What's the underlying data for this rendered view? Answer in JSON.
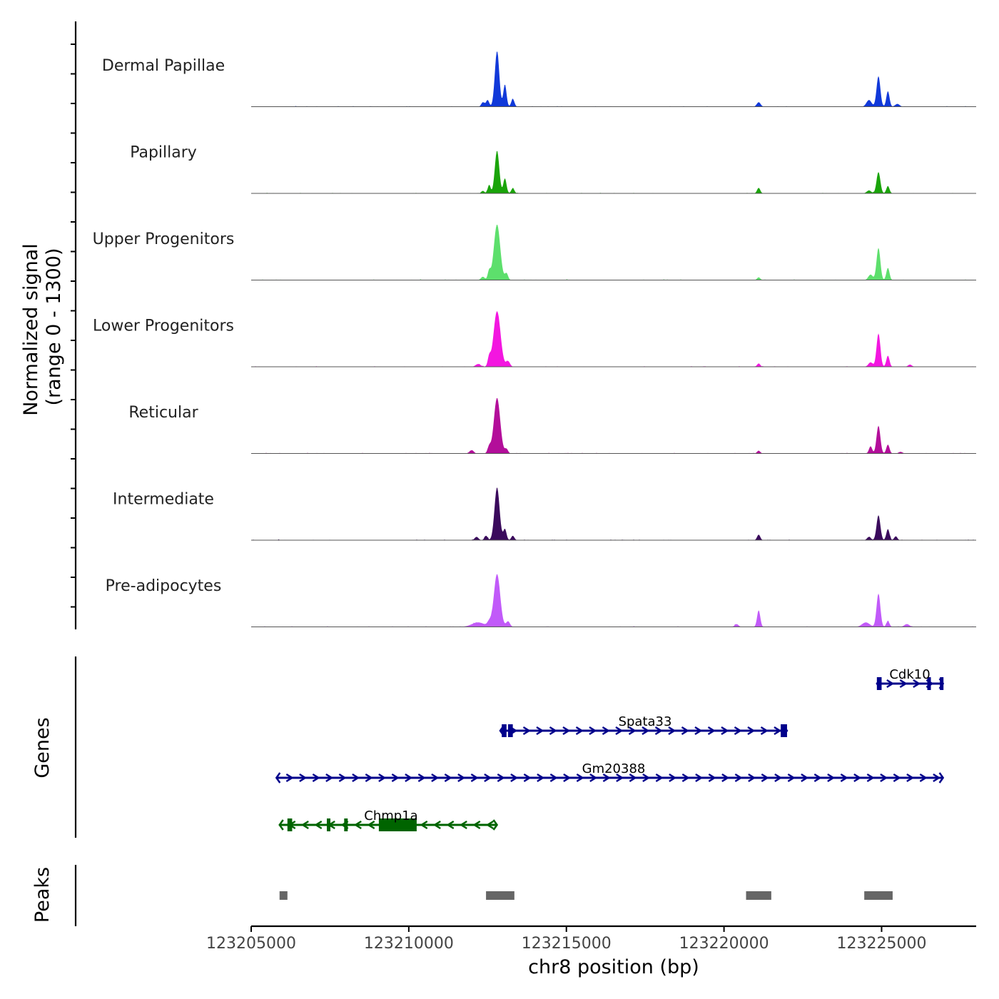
{
  "chart_data": {
    "type": "area",
    "chromosome": "chr8",
    "xlabel": "chr8 position (bp)",
    "xlim": [
      123205000,
      123228000
    ],
    "x_ticks": [
      123205000,
      123210000,
      123215000,
      123220000,
      123225000
    ],
    "x_tick_labels": [
      "123205000",
      "123210000",
      "123215000",
      "123220000",
      "123225000"
    ],
    "coverage": {
      "ylabel_line1": "Normalized signal",
      "ylabel_line2": "(range 0 - 1300)",
      "ylim": [
        0,
        1300
      ],
      "peak_sites": [
        123212800,
        123221100,
        123224900
      ],
      "tracks": [
        {
          "name": "Dermal Papillae",
          "color": "#1139D9",
          "max_signal": 1300,
          "components": [
            [
              123212800,
              1.0,
              70
            ],
            [
              123212500,
              0.12,
              50
            ],
            [
              123212350,
              0.08,
              50
            ],
            [
              123213050,
              0.4,
              50
            ],
            [
              123213300,
              0.14,
              50
            ],
            [
              123221100,
              0.08,
              60
            ],
            [
              123224900,
              0.55,
              60
            ],
            [
              123225200,
              0.28,
              50
            ],
            [
              123224600,
              0.12,
              80
            ],
            [
              123225500,
              0.05,
              70
            ]
          ]
        },
        {
          "name": "Papillary",
          "color": "#1AA40A",
          "max_signal": 1000,
          "components": [
            [
              123212800,
              1.0,
              70
            ],
            [
              123212550,
              0.2,
              45
            ],
            [
              123212350,
              0.06,
              50
            ],
            [
              123213050,
              0.35,
              50
            ],
            [
              123213300,
              0.12,
              50
            ],
            [
              123221100,
              0.13,
              50
            ],
            [
              123224900,
              0.5,
              60
            ],
            [
              123225200,
              0.17,
              50
            ],
            [
              123224600,
              0.07,
              70
            ]
          ]
        },
        {
          "name": "Upper Progenitors",
          "color": "#5DDF6C",
          "max_signal": 1300,
          "components": [
            [
              123212800,
              1.0,
              100
            ],
            [
              123212550,
              0.16,
              45
            ],
            [
              123212350,
              0.06,
              60
            ],
            [
              123213100,
              0.12,
              50
            ],
            [
              123221100,
              0.05,
              50
            ],
            [
              123224900,
              0.58,
              60
            ],
            [
              123225200,
              0.22,
              50
            ],
            [
              123224650,
              0.1,
              70
            ]
          ]
        },
        {
          "name": "Lower Progenitors",
          "color": "#F316E0",
          "max_signal": 1300,
          "components": [
            [
              123212800,
              1.0,
              110
            ],
            [
              123212550,
              0.16,
              45
            ],
            [
              123212200,
              0.05,
              80
            ],
            [
              123213150,
              0.1,
              60
            ],
            [
              123221100,
              0.06,
              50
            ],
            [
              123224900,
              0.6,
              60
            ],
            [
              123225200,
              0.2,
              50
            ],
            [
              123224650,
              0.08,
              70
            ],
            [
              123225900,
              0.04,
              60
            ]
          ]
        },
        {
          "name": "Reticular",
          "color": "#B30E9A",
          "max_signal": 1300,
          "components": [
            [
              123212800,
              1.0,
              100
            ],
            [
              123212550,
              0.12,
              50
            ],
            [
              123212000,
              0.06,
              60
            ],
            [
              123213100,
              0.08,
              50
            ],
            [
              123221100,
              0.05,
              50
            ],
            [
              123224900,
              0.5,
              60
            ],
            [
              123224650,
              0.13,
              50
            ],
            [
              123225200,
              0.16,
              50
            ],
            [
              123225600,
              0.03,
              60
            ]
          ]
        },
        {
          "name": "Intermediate",
          "color": "#3A0A5C",
          "max_signal": 1300,
          "components": [
            [
              123212800,
              0.95,
              80
            ],
            [
              123212450,
              0.08,
              50
            ],
            [
              123212150,
              0.06,
              60
            ],
            [
              123213050,
              0.2,
              50
            ],
            [
              123213300,
              0.08,
              50
            ],
            [
              123221100,
              0.1,
              50
            ],
            [
              123224900,
              0.45,
              60
            ],
            [
              123225200,
              0.2,
              50
            ],
            [
              123225450,
              0.07,
              50
            ],
            [
              123224600,
              0.06,
              60
            ]
          ]
        },
        {
          "name": "Pre-adipocytes",
          "color": "#C15AF9",
          "max_signal": 1300,
          "components": [
            [
              123212800,
              0.95,
              100
            ],
            [
              123212200,
              0.08,
              200
            ],
            [
              123212550,
              0.08,
              60
            ],
            [
              123213150,
              0.1,
              60
            ],
            [
              123221100,
              0.3,
              50
            ],
            [
              123220400,
              0.05,
              60
            ],
            [
              123224900,
              0.6,
              60
            ],
            [
              123224500,
              0.08,
              120
            ],
            [
              123225200,
              0.1,
              50
            ],
            [
              123225800,
              0.05,
              80
            ]
          ]
        }
      ]
    },
    "genes": {
      "ylabel": "Genes",
      "items": [
        {
          "name": "Cdk10",
          "strand": "+",
          "color": "#00008B",
          "start": 123224850,
          "end": 123226950,
          "exons": [
            [
              123224850,
              123225000
            ],
            [
              123226450,
              123226550
            ],
            [
              123226850,
              123226950
            ]
          ]
        },
        {
          "name": "Spata33",
          "strand": "+",
          "color": "#00008B",
          "start": 123212900,
          "end": 123222000,
          "exons": [
            [
              123212950,
              123213100
            ],
            [
              123213150,
              123213300
            ],
            [
              123221800,
              123222000
            ]
          ]
        },
        {
          "name": "Gm20388",
          "strand": "+",
          "color": "#00008B",
          "start": 123205800,
          "end": 123226950,
          "exons": []
        },
        {
          "name": "Chmp1a",
          "strand": "-",
          "color": "#006400",
          "start": 123205900,
          "end": 123212800,
          "exons": [
            [
              123206150,
              123206300
            ],
            [
              123207400,
              123207500
            ],
            [
              123207950,
              123208050
            ],
            [
              123209050,
              123210250
            ]
          ]
        }
      ]
    },
    "peaks": {
      "ylabel": "Peaks",
      "color": "#666666",
      "regions": [
        [
          123205900,
          123206150
        ],
        [
          123212450,
          123213350
        ],
        [
          123220700,
          123221500
        ],
        [
          123224450,
          123225350
        ]
      ]
    }
  }
}
